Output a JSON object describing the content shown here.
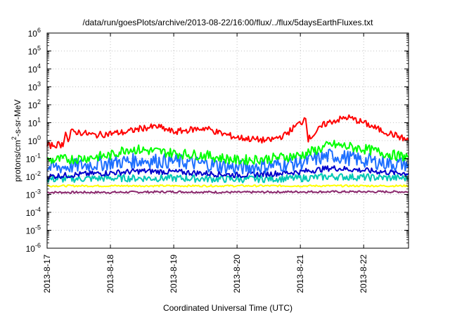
{
  "chart_data": {
    "type": "line",
    "title": "/data/run/goesPlots/archive/2013-08-22/16:00/flux/../flux/5daysEarthFluxes.txt",
    "xlabel": "Coordinated Universal Time (UTC)",
    "ylabel": "protons/cm²-s-sr-MeV",
    "y_scale": "log",
    "ylim": [
      1e-06,
      1000000.0
    ],
    "xlim": [
      "2013-08-17 00:00",
      "2013-08-22 17:00"
    ],
    "x_ticks": [
      "2013-8-17",
      "2013-8-18",
      "2013-8-19",
      "2013-8-20",
      "2013-8-21",
      "2013-8-22"
    ],
    "y_ticks": [
      {
        "base": "10",
        "exp": "-6"
      },
      {
        "base": "10",
        "exp": "-5"
      },
      {
        "base": "10",
        "exp": "-4"
      },
      {
        "base": "10",
        "exp": "-3"
      },
      {
        "base": "10",
        "exp": "-2"
      },
      {
        "base": "10",
        "exp": "-1"
      },
      {
        "base": "10",
        "exp": "0"
      },
      {
        "base": "10",
        "exp": "1"
      },
      {
        "base": "10",
        "exp": "2"
      },
      {
        "base": "10",
        "exp": "3"
      },
      {
        "base": "10",
        "exp": "4"
      },
      {
        "base": "10",
        "exp": "5"
      },
      {
        "base": "10",
        "exp": "6"
      }
    ],
    "grid": true,
    "series": [
      {
        "color": "#ff0000",
        "x": [
          "2013-08-17 00:00",
          "2013-08-17 04:00",
          "2013-08-17 06:00",
          "2013-08-17 07:00",
          "2013-08-17 08:00",
          "2013-08-17 09:00",
          "2013-08-17 12:00",
          "2013-08-17 18:00",
          "2013-08-18 00:00",
          "2013-08-18 06:00",
          "2013-08-18 12:00",
          "2013-08-18 18:00",
          "2013-08-19 00:00",
          "2013-08-19 06:00",
          "2013-08-19 12:00",
          "2013-08-19 18:00",
          "2013-08-20 00:00",
          "2013-08-20 06:00",
          "2013-08-20 12:00",
          "2013-08-20 18:00",
          "2013-08-20 23:00",
          "2013-08-21 01:00",
          "2013-08-21 02:00",
          "2013-08-21 03:00",
          "2013-08-21 06:00",
          "2013-08-21 09:00",
          "2013-08-21 12:00",
          "2013-08-21 18:00",
          "2013-08-22 00:00",
          "2013-08-22 06:00",
          "2013-08-22 12:00",
          "2013-08-22 17:00"
        ],
        "y": [
          0.5,
          0.6,
          0.6,
          4,
          0.8,
          3,
          3,
          2,
          2.5,
          3,
          5,
          6,
          3,
          4,
          5,
          2.5,
          1.5,
          1.2,
          1,
          2,
          8,
          12,
          25,
          1.2,
          3,
          8,
          12,
          20,
          10,
          4,
          2,
          1
        ]
      },
      {
        "color": "#00ff00",
        "x": [
          "2013-08-17 00:00",
          "2013-08-17 12:00",
          "2013-08-18 00:00",
          "2013-08-18 06:00",
          "2013-08-18 12:00",
          "2013-08-19 00:00",
          "2013-08-19 12:00",
          "2013-08-20 00:00",
          "2013-08-20 12:00",
          "2013-08-21 00:00",
          "2013-08-21 06:00",
          "2013-08-21 12:00",
          "2013-08-22 00:00",
          "2013-08-22 12:00",
          "2013-08-22 17:00"
        ],
        "y": [
          0.08,
          0.1,
          0.15,
          0.35,
          0.3,
          0.2,
          0.15,
          0.08,
          0.1,
          0.15,
          0.3,
          0.6,
          0.35,
          0.15,
          0.12
        ]
      },
      {
        "color": "#1e6fff",
        "x": [
          "2013-08-17 00:00",
          "2013-08-17 12:00",
          "2013-08-18 00:00",
          "2013-08-18 12:00",
          "2013-08-19 00:00",
          "2013-08-19 12:00",
          "2013-08-20 00:00",
          "2013-08-20 12:00",
          "2013-08-21 00:00",
          "2013-08-21 12:00",
          "2013-08-22 00:00",
          "2013-08-22 12:00",
          "2013-08-22 17:00"
        ],
        "y": [
          0.03,
          0.04,
          0.06,
          0.08,
          0.07,
          0.05,
          0.03,
          0.04,
          0.06,
          0.15,
          0.08,
          0.05,
          0.05
        ]
      },
      {
        "color": "#0000cc",
        "x": [
          "2013-08-17 00:00",
          "2013-08-17 12:00",
          "2013-08-18 00:00",
          "2013-08-18 12:00",
          "2013-08-19 00:00",
          "2013-08-19 12:00",
          "2013-08-20 00:00",
          "2013-08-20 12:00",
          "2013-08-21 00:00",
          "2013-08-21 12:00",
          "2013-08-22 00:00",
          "2013-08-22 12:00",
          "2013-08-22 17:00"
        ],
        "y": [
          0.01,
          0.013,
          0.016,
          0.02,
          0.018,
          0.015,
          0.012,
          0.014,
          0.018,
          0.03,
          0.022,
          0.016,
          0.015
        ]
      },
      {
        "color": "#00c8b4",
        "x": [
          "2013-08-17 00:00",
          "2013-08-18 00:00",
          "2013-08-19 00:00",
          "2013-08-20 00:00",
          "2013-08-21 00:00",
          "2013-08-21 12:00",
          "2013-08-22 00:00",
          "2013-08-22 17:00"
        ],
        "y": [
          0.007,
          0.008,
          0.008,
          0.007,
          0.008,
          0.01,
          0.009,
          0.008
        ]
      },
      {
        "color": "#ffff00",
        "x": [
          "2013-08-17 00:00",
          "2013-08-18 00:00",
          "2013-08-19 00:00",
          "2013-08-20 00:00",
          "2013-08-21 00:00",
          "2013-08-22 00:00",
          "2013-08-22 17:00"
        ],
        "y": [
          0.003,
          0.003,
          0.003,
          0.003,
          0.003,
          0.003,
          0.003
        ]
      },
      {
        "color": "#8b2a6e",
        "x": [
          "2013-08-17 00:00",
          "2013-08-18 00:00",
          "2013-08-19 00:00",
          "2013-08-20 00:00",
          "2013-08-21 00:00",
          "2013-08-22 00:00",
          "2013-08-22 17:00"
        ],
        "y": [
          0.0013,
          0.0013,
          0.0014,
          0.0013,
          0.0014,
          0.0014,
          0.0014
        ]
      }
    ]
  }
}
